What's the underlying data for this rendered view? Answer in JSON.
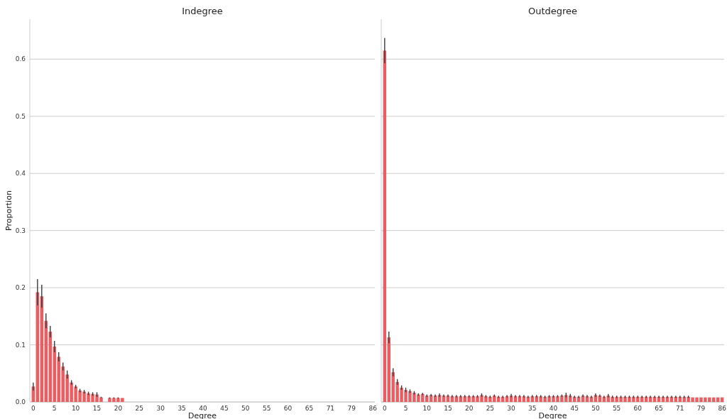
{
  "chart_data": [
    {
      "type": "bar",
      "title": "Indegree",
      "xlabel": "Degree",
      "ylabel": "Proportion",
      "color": "#ec5d62",
      "ylim": [
        0,
        0.67
      ],
      "yticks": [
        {
          "value": 0,
          "label": "0.0"
        },
        0.1,
        0.2,
        0.3,
        0.4,
        0.5,
        0.6
      ],
      "grid": "y",
      "categories": [
        "0",
        null,
        null,
        null,
        null,
        "5",
        null,
        null,
        null,
        null,
        "10",
        null,
        null,
        null,
        null,
        "15",
        null,
        null,
        null,
        null,
        "20",
        null,
        null,
        null,
        null,
        "25",
        null,
        null,
        null,
        null,
        "30",
        null,
        null,
        null,
        null,
        "35",
        null,
        null,
        null,
        null,
        "40",
        null,
        null,
        null,
        null,
        "45",
        null,
        null,
        null,
        null,
        "50",
        null,
        null,
        null,
        null,
        "55",
        null,
        null,
        null,
        null,
        "60",
        null,
        null,
        null,
        null,
        "65",
        null,
        null,
        null,
        null,
        "71",
        null,
        null,
        null,
        null,
        "79",
        null,
        null,
        null,
        null,
        "86"
      ],
      "values": [
        0.027,
        0.192,
        0.185,
        0.142,
        0.123,
        0.097,
        0.079,
        0.062,
        0.048,
        0.034,
        0.027,
        0.02,
        0.018,
        0.015,
        0.014,
        0.013,
        0.008,
        null,
        0.007,
        0.007,
        0.007,
        0.007,
        null,
        null,
        null,
        null,
        null,
        null,
        null,
        null,
        null,
        null,
        null,
        null,
        null,
        null,
        null,
        null,
        null,
        null,
        null,
        null,
        null,
        null,
        null,
        null,
        null,
        null,
        null,
        null,
        null,
        null,
        null,
        null,
        null,
        null,
        null,
        null,
        null,
        null,
        null,
        null,
        null,
        null,
        null,
        null,
        null,
        null,
        null,
        null,
        null,
        null,
        null,
        null,
        null,
        null,
        null,
        null,
        null,
        null,
        null
      ],
      "errors": [
        0.007,
        0.023,
        0.02,
        0.013,
        0.01,
        0.01,
        0.008,
        0.007,
        0.007,
        0.004,
        0.003,
        0.003,
        0.003,
        0.003,
        0.003,
        0.004,
        0.001,
        null,
        0.001,
        0.001,
        0.001,
        null,
        null,
        null,
        null,
        null,
        null,
        null,
        null,
        null,
        null,
        null,
        null,
        null,
        null,
        null,
        null,
        null,
        null,
        null,
        null,
        null,
        null,
        null,
        null,
        null,
        null,
        null,
        null,
        null,
        null,
        null,
        null,
        null,
        null,
        null,
        null,
        null,
        null,
        null,
        null,
        null,
        null,
        null,
        null,
        null,
        null,
        null,
        null,
        null,
        null,
        null,
        null,
        null,
        null,
        null,
        null,
        null,
        null,
        null,
        null
      ]
    },
    {
      "type": "bar",
      "title": "Outdegree",
      "xlabel": "Degree",
      "color": "#ec5d62",
      "ylim": [
        0,
        0.67
      ],
      "yticks": [
        0,
        0.1,
        0.2,
        0.3,
        0.4,
        0.5,
        0.6
      ],
      "grid": "y",
      "tick_labels": "x",
      "categories": [
        "0",
        null,
        null,
        null,
        null,
        "5",
        null,
        null,
        null,
        null,
        "10",
        null,
        null,
        null,
        null,
        "15",
        null,
        null,
        null,
        null,
        "20",
        null,
        null,
        null,
        null,
        "25",
        null,
        null,
        null,
        null,
        "30",
        null,
        null,
        null,
        null,
        "35",
        null,
        null,
        null,
        null,
        "40",
        null,
        null,
        null,
        null,
        "45",
        null,
        null,
        null,
        null,
        "50",
        null,
        null,
        null,
        null,
        "55",
        null,
        null,
        null,
        null,
        "60",
        null,
        null,
        null,
        null,
        "65",
        null,
        null,
        null,
        null,
        "71",
        null,
        null,
        null,
        null,
        "79",
        null,
        null,
        null,
        null,
        "86"
      ],
      "values": [
        0.615,
        0.113,
        0.052,
        0.035,
        0.025,
        0.021,
        0.019,
        0.016,
        0.013,
        0.014,
        0.011,
        0.012,
        0.011,
        0.012,
        0.011,
        0.011,
        0.01,
        0.01,
        0.01,
        0.01,
        0.01,
        0.01,
        0.01,
        0.012,
        0.01,
        0.009,
        0.011,
        0.009,
        0.009,
        0.01,
        0.011,
        0.01,
        0.01,
        0.01,
        0.009,
        0.01,
        0.01,
        0.01,
        0.009,
        0.01,
        0.01,
        0.01,
        0.011,
        0.012,
        0.011,
        0.009,
        0.009,
        0.011,
        0.01,
        0.009,
        0.012,
        0.011,
        0.009,
        0.011,
        0.009,
        0.009,
        0.009,
        0.009,
        0.009,
        0.009,
        0.009,
        0.009,
        0.009,
        0.009,
        0.009,
        0.009,
        0.009,
        0.009,
        0.009,
        0.009,
        0.009,
        0.009,
        0.009,
        0.008,
        0.008,
        0.008,
        0.008,
        0.008,
        0.008,
        0.008,
        0.008
      ],
      "errors": [
        0.022,
        0.01,
        0.007,
        0.005,
        0.004,
        0.004,
        0.003,
        0.003,
        0.002,
        0.002,
        0.002,
        0.002,
        0.002,
        0.003,
        0.002,
        0.002,
        0.002,
        0.002,
        0.002,
        0.002,
        0.002,
        0.002,
        0.002,
        0.003,
        0.002,
        0.002,
        0.002,
        0.002,
        0.002,
        0.002,
        0.003,
        0.002,
        0.002,
        0.002,
        0.002,
        0.002,
        0.002,
        0.002,
        0.002,
        0.002,
        0.002,
        0.002,
        0.002,
        0.004,
        0.003,
        0.002,
        0.002,
        0.002,
        0.002,
        0.002,
        0.003,
        0.002,
        0.002,
        0.003,
        0.002,
        0.002,
        0.002,
        0.002,
        0.002,
        0.002,
        0.002,
        0.002,
        0.002,
        0.002,
        0.002,
        0.002,
        0.002,
        0.002,
        0.002,
        0.002,
        0.002,
        0.002,
        0.002,
        null,
        null,
        null,
        null,
        null,
        null,
        null,
        null
      ]
    }
  ]
}
